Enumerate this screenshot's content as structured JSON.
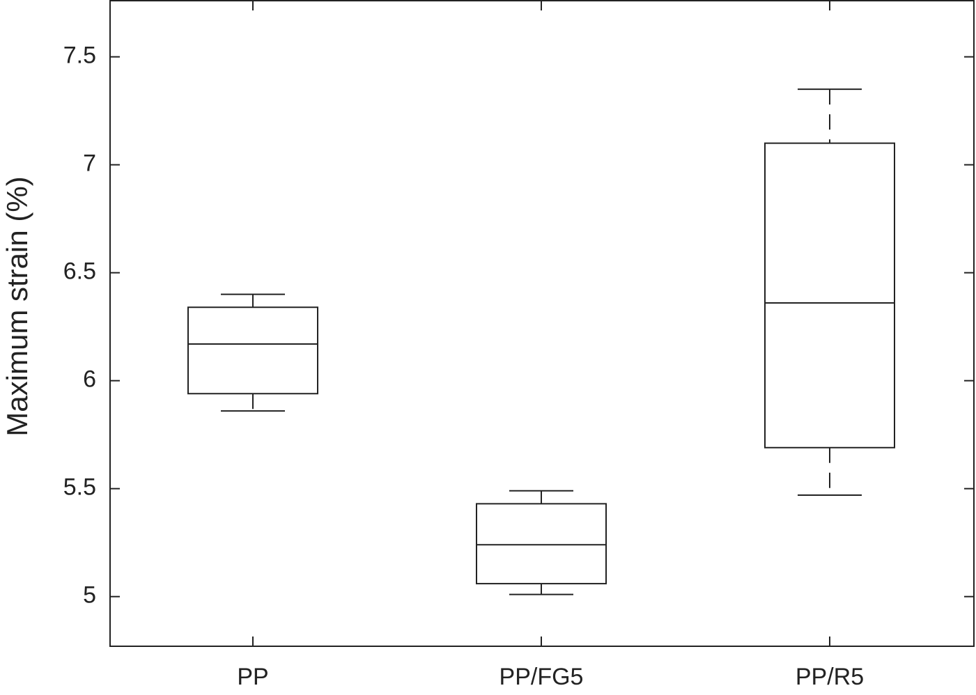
{
  "chart_data": {
    "type": "box",
    "ylabel": "Maximum strain (%)",
    "categories": [
      "PP",
      "PP/FG5",
      "PP/R5"
    ],
    "whisker_low": [
      5.86,
      5.01,
      5.47
    ],
    "q1": [
      5.94,
      5.06,
      5.69
    ],
    "median": [
      6.17,
      5.24,
      6.36
    ],
    "q3": [
      6.34,
      5.43,
      7.1
    ],
    "whisker_high": [
      6.4,
      5.49,
      7.35
    ],
    "color": "#222222",
    "ylim": [
      4.77,
      7.76
    ],
    "yticks": [
      5,
      5.5,
      6,
      6.5,
      7,
      7.5
    ]
  }
}
